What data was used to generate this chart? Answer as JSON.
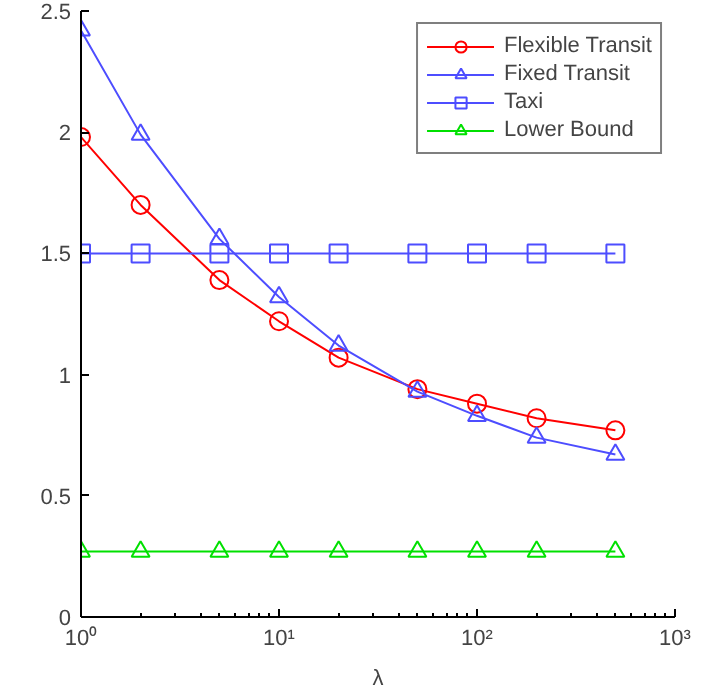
{
  "chart_data": {
    "type": "line",
    "xlabel": "λ",
    "log": "x",
    "x": [
      1,
      2,
      5,
      10,
      20,
      50,
      100,
      200,
      500
    ],
    "xlim": [
      1,
      1000
    ],
    "xticks": [
      {
        "value": 1,
        "label": "10⁰"
      },
      {
        "value": 10,
        "label": "10¹"
      },
      {
        "value": 100,
        "label": "10²"
      },
      {
        "value": 1000,
        "label": "10³"
      }
    ],
    "ylim": [
      0,
      2.5
    ],
    "yticks": [
      0,
      0.5,
      1,
      1.5,
      2,
      2.5
    ],
    "grid": false,
    "legend": "top right",
    "line_style": "solid",
    "series": [
      {
        "name": "Flexible Transit",
        "color": "#ff0000",
        "marker": "circle",
        "values": [
          1.98,
          1.7,
          1.39,
          1.22,
          1.07,
          0.94,
          0.88,
          0.82,
          0.77
        ]
      },
      {
        "name": "Fixed Transit",
        "color": "#4d4dff",
        "marker": "triangle",
        "values": [
          2.42,
          1.99,
          1.56,
          1.32,
          1.12,
          0.93,
          0.83,
          0.74,
          0.67
        ]
      },
      {
        "name": "Taxi",
        "color": "#4d4dff",
        "marker": "square",
        "values": [
          1.5,
          1.5,
          1.5,
          1.5,
          1.5,
          1.5,
          1.5,
          1.5,
          1.5
        ]
      },
      {
        "name": "Lower Bound",
        "color": "#00e000",
        "marker": "triangle",
        "values": [
          0.27,
          0.27,
          0.27,
          0.27,
          0.27,
          0.27,
          0.27,
          0.27,
          0.27
        ]
      }
    ]
  }
}
